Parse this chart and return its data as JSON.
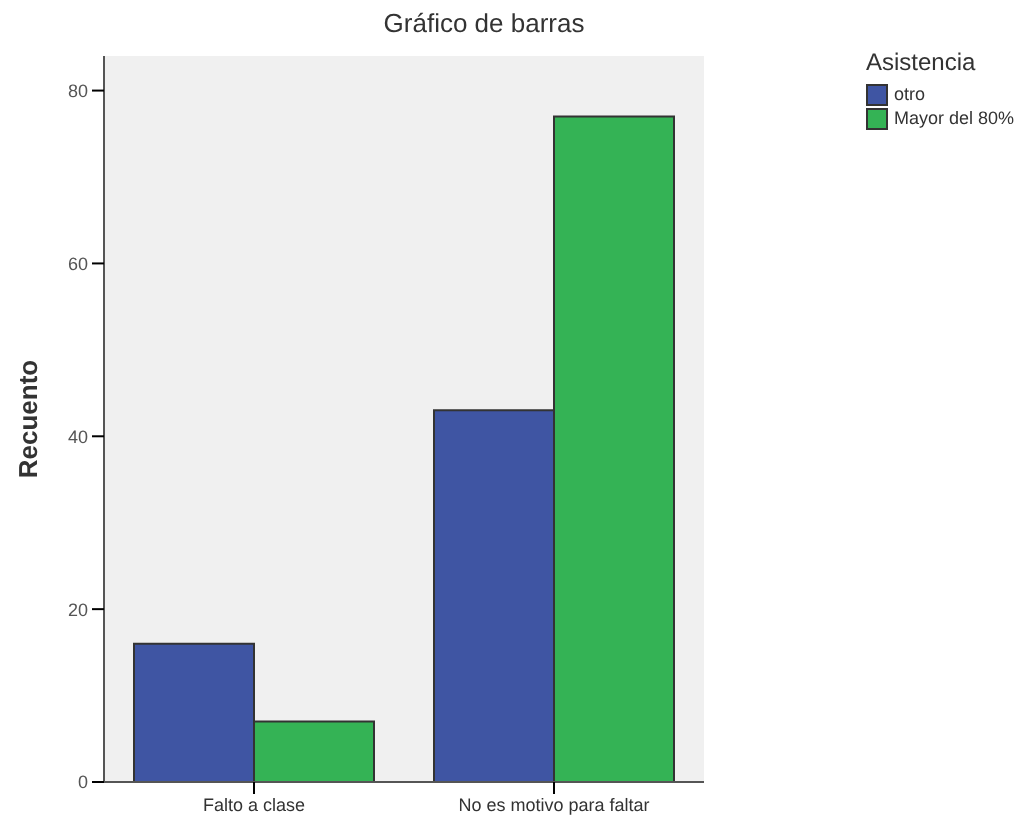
{
  "chart_data": {
    "type": "bar",
    "title": "Gráfico de barras",
    "ylabel": "Recuento",
    "legend_title": "Asistencia",
    "categories": [
      "Falto a clase",
      "No es motivo para faltar"
    ],
    "series": [
      {
        "name": "otro",
        "color": "#3f55a3",
        "values": [
          16,
          43
        ]
      },
      {
        "name": "Mayor del 80%",
        "color": "#34b355",
        "values": [
          7,
          77
        ]
      }
    ],
    "ylim": [
      0,
      84
    ],
    "yticks": [
      0,
      20,
      40,
      60,
      80
    ],
    "grid": false,
    "legend": "top right"
  }
}
